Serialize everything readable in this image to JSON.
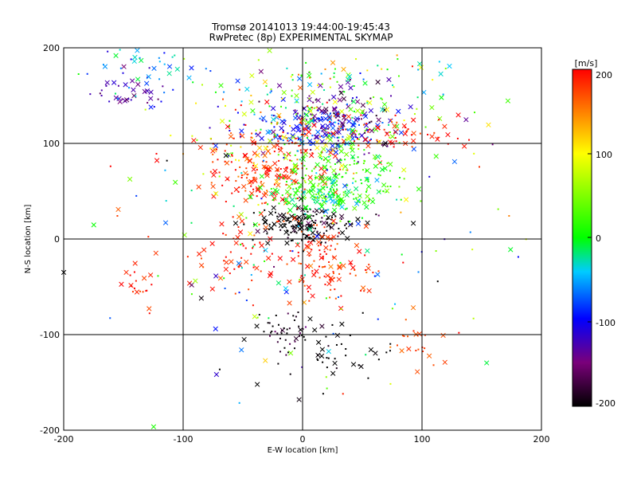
{
  "chart_data": {
    "type": "scatter",
    "title": "Tromsø 20141013 19:44:00-19:45:43",
    "subtitle": "RwPretec (8p) EXPERIMENTAL SKYMAP",
    "xlabel": "E-W location [km]",
    "ylabel": "N-S location [km]",
    "xlim": [
      -200,
      200
    ],
    "ylim": [
      -200,
      200
    ],
    "x_ticks": [
      "-200",
      "-100",
      "0",
      "100",
      "200"
    ],
    "y_ticks": [
      "-200",
      "-100",
      "0",
      "100",
      "200"
    ],
    "grid": true,
    "grid_lines": [
      -100,
      0,
      100
    ],
    "colorbar": {
      "unit": "[m/s]",
      "range": [
        -200,
        200
      ],
      "ticks": [
        "200",
        "100",
        "0",
        "-100",
        "-200"
      ],
      "colormap": "rainbow: black-purple-blue-cyan-green-yellow-red"
    },
    "marker_types": [
      "x",
      "dot"
    ],
    "clusters": [
      {
        "x": 0,
        "y": 15,
        "sx": 22,
        "sy": 10,
        "n": 160,
        "v": -210,
        "spread": 40
      },
      {
        "x": -30,
        "y": 70,
        "sx": 28,
        "sy": 22,
        "n": 190,
        "v": 185,
        "spread": 40
      },
      {
        "x": 20,
        "y": -25,
        "sx": 18,
        "sy": 22,
        "n": 110,
        "v": 185,
        "spread": 35
      },
      {
        "x": -50,
        "y": -20,
        "sx": 22,
        "sy": 18,
        "n": 60,
        "v": 185,
        "spread": 30
      },
      {
        "x": 35,
        "y": 70,
        "sx": 25,
        "sy": 22,
        "n": 200,
        "v": 25,
        "spread": 45
      },
      {
        "x": 10,
        "y": 45,
        "sx": 22,
        "sy": 10,
        "n": 120,
        "v": -5,
        "spread": 50
      },
      {
        "x": 5,
        "y": 115,
        "sx": 28,
        "sy": 12,
        "n": 150,
        "v": -85,
        "spread": 45
      },
      {
        "x": 30,
        "y": 130,
        "sx": 25,
        "sy": 18,
        "n": 110,
        "v": -150,
        "spread": 50
      },
      {
        "x": 20,
        "y": 150,
        "sx": 55,
        "sy": 25,
        "n": 150,
        "v": 20,
        "spread": 140
      },
      {
        "x": -150,
        "y": 150,
        "sx": 15,
        "sy": 12,
        "n": 35,
        "v": -130,
        "spread": 40
      },
      {
        "x": -130,
        "y": 180,
        "sx": 35,
        "sy": 15,
        "n": 45,
        "v": -60,
        "spread": 60
      },
      {
        "x": -135,
        "y": -50,
        "sx": 8,
        "sy": 10,
        "n": 18,
        "v": 190,
        "spread": 20
      },
      {
        "x": -15,
        "y": -100,
        "sx": 15,
        "sy": 12,
        "n": 45,
        "v": -195,
        "spread": 40
      },
      {
        "x": 25,
        "y": -120,
        "sx": 20,
        "sy": 20,
        "n": 45,
        "v": -205,
        "spread": 20
      },
      {
        "x": 95,
        "y": -110,
        "sx": 12,
        "sy": 12,
        "n": 22,
        "v": 175,
        "spread": 25
      },
      {
        "x": 80,
        "y": 110,
        "sx": 35,
        "sy": 12,
        "n": 60,
        "v": 195,
        "spread": 40
      },
      {
        "x": -20,
        "y": 110,
        "sx": 40,
        "sy": 25,
        "n": 100,
        "v": 150,
        "spread": 150
      },
      {
        "x": 0,
        "y": 0,
        "sx": 100,
        "sy": 90,
        "n": 160,
        "v": 0,
        "spread": 220
      }
    ]
  }
}
